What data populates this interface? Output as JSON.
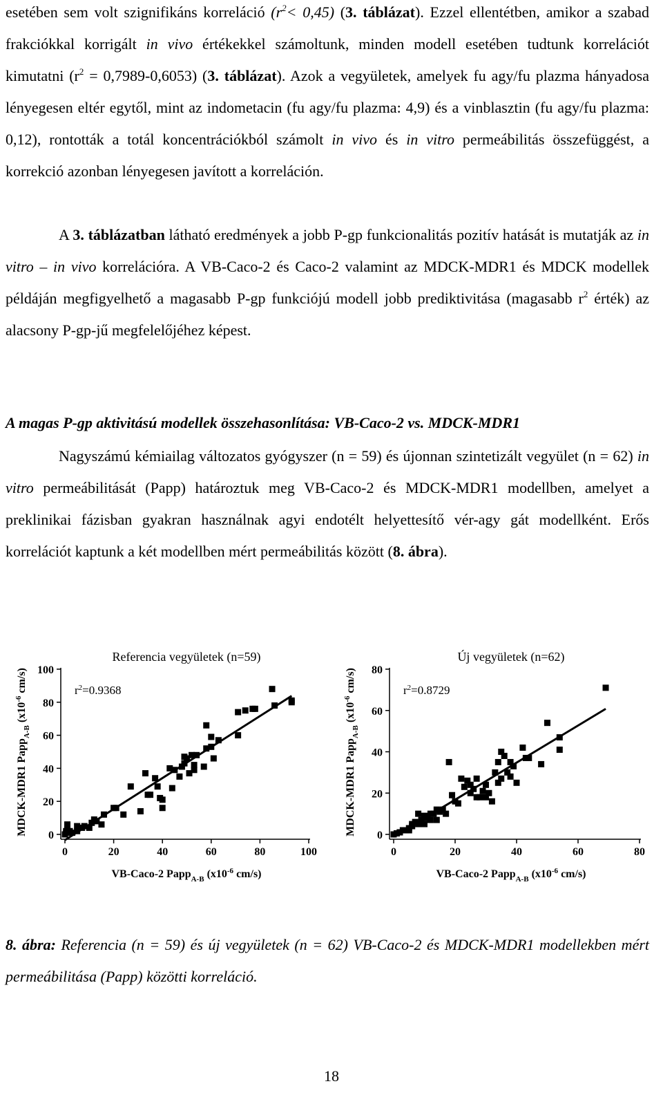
{
  "document": {
    "paragraphs": [
      [
        "esetében sem volt szignifikáns korreláció ",
        "(r",
        "2",
        "< 0,45)",
        " (",
        "3. táblázat",
        "). Ezzel ellentétben, amikor a szabad frakciókkal korrigált ",
        "in vivo",
        " értékekkel számoltunk, minden modell esetében tudtunk korrelációt kimutatni (r",
        "2",
        " = 0,7989-0,6053) (",
        "3. táblázat",
        "). Azok a vegyületek, amelyek fu agy/fu plazma hányadosa lényegesen eltér egytől, mint az indometacin (fu agy/fu plazma: 4,9) és a vinblasztin (fu agy/fu plazma: 0,12), rontották a totál koncentrációkból számolt ",
        "in vivo",
        " és ",
        "in vitro",
        " permeábilitás összefüggést, a korrekció azonban lényegesen javított a korreláción."
      ],
      [
        "A ",
        "3. táblázatban",
        " látható eredmények a jobb P-gp funkcionalitás pozitív hatását is mutatják az ",
        "in vitro – in vivo",
        " korrelációra. A VB-Caco-2 és Caco-2 valamint az MDCK-MDR1 és MDCK modellek példáján megfigyelhető a magasabb P-gp funkciójú modell jobb prediktivitása (magasabb r",
        "2",
        " érték) az alacsony P-gp-jű megfelelőjéhez képest."
      ],
      [
        "Nagyszámú kémiailag változatos gyógyszer (n = 59) és újonnan szintetizált vegyület (n = 62) ",
        "in vitro",
        " permeábilitását (Papp) határoztuk meg VB-Caco-2 és MDCK-MDR1 modellben, amelyet a preklinikai fázisban gyakran használnak agyi endotélt helyettesítő vér-agy gát modellként. Erős korrelációt kaptunk a két modellben mért permeábilitás között (",
        "8. ábra",
        ")."
      ]
    ],
    "heading": "A magas P-gp aktivitású modellek összehasonlítása: VB-Caco-2 vs. MDCK-MDR1",
    "caption": [
      "8. ábra:",
      " Referencia (n = 59) és új vegyületek (n = 62) VB-Caco-2 és MDCK-MDR1 modellekben mért permeábilitása (Papp) közötti korreláció."
    ],
    "page_number": "18"
  },
  "chart_data": [
    {
      "type": "scatter",
      "title": "Referencia vegyületek (n=59)",
      "annotation_parts": [
        "r",
        "2",
        "=0.9368"
      ],
      "xlabel_parts": [
        "VB-Caco-2 Papp",
        "A-B",
        " (x10",
        "-6",
        " cm/s)"
      ],
      "ylabel_parts": [
        "MDCK-MDR1 Papp",
        "A-B",
        " (x10",
        "-6",
        " cm/s)"
      ],
      "color": "#000000",
      "trendline": "linear",
      "x": [
        0,
        0.5,
        1,
        1,
        0.5,
        3,
        5,
        7,
        8,
        10,
        11,
        12,
        13,
        15,
        16,
        21,
        24,
        27,
        31,
        33,
        34,
        35,
        37,
        38,
        39,
        40,
        40,
        43,
        45,
        47,
        48,
        49,
        49,
        50,
        51,
        52,
        53,
        54,
        57,
        58,
        60,
        61,
        58,
        60,
        63,
        71,
        71,
        74,
        77,
        78,
        85,
        86,
        93,
        93,
        44,
        5,
        20,
        2,
        53
      ],
      "y": [
        0,
        2,
        6,
        3,
        1,
        1,
        2,
        4,
        5,
        4,
        7,
        9,
        8,
        6,
        12,
        16,
        12,
        29,
        14,
        37,
        24,
        24,
        34,
        29,
        22,
        21,
        16,
        40,
        39,
        35,
        41,
        47,
        43,
        46,
        37,
        48,
        39,
        48,
        41,
        52,
        53,
        46,
        66,
        59,
        57,
        60,
        74,
        75,
        76,
        76,
        88,
        78,
        80,
        81,
        28,
        5,
        16,
        2,
        42
      ],
      "xlim": [
        0,
        100
      ],
      "ylim": [
        0,
        100
      ],
      "xticks": [
        0,
        20,
        40,
        60,
        80,
        100
      ],
      "yticks": [
        0,
        20,
        40,
        60,
        80,
        100
      ]
    },
    {
      "type": "scatter",
      "title": "Új vegyületek (n=62)",
      "annotation_parts": [
        "r",
        "2",
        "=0.8729"
      ],
      "xlabel_parts": [
        "VB-Caco-2 Papp",
        "A-B",
        " (x10",
        "-6",
        " cm/s)"
      ],
      "ylabel_parts": [
        "MDCK-MDR1 Papp",
        "A-B",
        " (x10",
        "-6",
        " cm/s)"
      ],
      "color": "#000000",
      "trendline": "linear",
      "x": [
        0,
        1,
        2,
        3,
        4,
        5,
        6,
        7,
        8,
        8,
        9,
        10,
        11,
        12,
        13,
        14,
        15,
        17,
        18,
        19,
        21,
        22,
        23,
        24,
        25,
        25,
        26,
        27,
        27,
        28,
        30,
        30,
        31,
        32,
        33,
        34,
        34,
        35,
        35,
        36,
        37,
        38,
        39,
        40,
        42,
        43,
        44,
        48,
        50,
        54,
        54,
        69,
        5,
        6,
        10,
        12,
        14,
        16,
        20,
        29,
        38,
        2
      ],
      "y": [
        0,
        0.5,
        1,
        2,
        2,
        3,
        4,
        6,
        10,
        5,
        7,
        5,
        8,
        7,
        10,
        7,
        11,
        10,
        35,
        19,
        15,
        27,
        23,
        26,
        24,
        20,
        22,
        18,
        27,
        18,
        18,
        24,
        20,
        16,
        30,
        25,
        35,
        40,
        27,
        38,
        30,
        28,
        33,
        25,
        42,
        37,
        37,
        34,
        54,
        47,
        41,
        71,
        2,
        5,
        9,
        10,
        12,
        12,
        16,
        21,
        35,
        1
      ],
      "xlim": [
        0,
        80
      ],
      "ylim": [
        0,
        80
      ],
      "xticks": [
        0,
        20,
        40,
        60,
        80
      ],
      "yticks": [
        0,
        20,
        40,
        60,
        80
      ]
    }
  ]
}
